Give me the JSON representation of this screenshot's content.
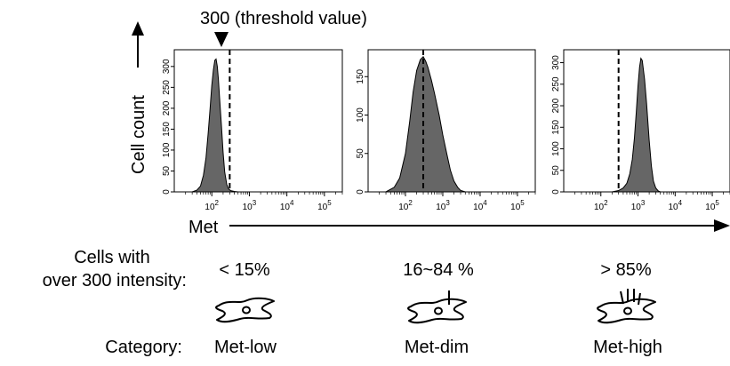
{
  "annotation": {
    "threshold_label": "300 (threshold value)"
  },
  "axes": {
    "ylabel": "Cell count",
    "xlabel": "Met"
  },
  "row_labels": {
    "percent_heading_line1": "Cells with",
    "percent_heading_line2": "over 300 intensity:",
    "category_heading": "Category:"
  },
  "chart_data": [
    {
      "type": "area",
      "xscale": "log",
      "xlim": [
        10,
        300000
      ],
      "threshold": 300,
      "x_ticks": [
        {
          "value": 100,
          "label": "10",
          "exp": "2"
        },
        {
          "value": 1000,
          "label": "10",
          "exp": "3"
        },
        {
          "value": 10000,
          "label": "10",
          "exp": "4"
        },
        {
          "value": 100000,
          "label": "10",
          "exp": "5"
        }
      ],
      "y_ticks": [
        0,
        50,
        100,
        150,
        200,
        250,
        300
      ],
      "ylim": [
        0,
        340
      ],
      "x": [
        30,
        40,
        50,
        60,
        70,
        80,
        90,
        100,
        110,
        120,
        130,
        140,
        150,
        160,
        180,
        200,
        220,
        250,
        280,
        320,
        400,
        500
      ],
      "y": [
        0,
        4,
        14,
        40,
        82,
        140,
        200,
        255,
        292,
        315,
        318,
        300,
        270,
        230,
        160,
        95,
        48,
        18,
        7,
        3,
        1,
        0
      ],
      "percent_label": "< 15%",
      "category": "Met-low"
    },
    {
      "type": "area",
      "xscale": "log",
      "xlim": [
        10,
        300000
      ],
      "threshold": 300,
      "x_ticks": [
        {
          "value": 100,
          "label": "10",
          "exp": "2"
        },
        {
          "value": 1000,
          "label": "10",
          "exp": "3"
        },
        {
          "value": 10000,
          "label": "10",
          "exp": "4"
        },
        {
          "value": 100000,
          "label": "10",
          "exp": "5"
        }
      ],
      "y_ticks": [
        0,
        50,
        100,
        150
      ],
      "ylim": [
        0,
        185
      ],
      "x": [
        30,
        50,
        70,
        100,
        130,
        160,
        200,
        250,
        300,
        350,
        400,
        500,
        600,
        800,
        1000,
        1300,
        1600,
        2000,
        2500,
        3000,
        4000
      ],
      "y": [
        0,
        6,
        18,
        50,
        92,
        130,
        158,
        172,
        176,
        170,
        162,
        145,
        128,
        100,
        74,
        48,
        28,
        14,
        6,
        2,
        0
      ],
      "percent_label": "16~84 %",
      "category": "Met-dim"
    },
    {
      "type": "area",
      "xscale": "log",
      "xlim": [
        10,
        300000
      ],
      "threshold": 300,
      "x_ticks": [
        {
          "value": 100,
          "label": "10",
          "exp": "2"
        },
        {
          "value": 1000,
          "label": "10",
          "exp": "3"
        },
        {
          "value": 10000,
          "label": "10",
          "exp": "4"
        },
        {
          "value": 100000,
          "label": "10",
          "exp": "5"
        }
      ],
      "y_ticks": [
        0,
        50,
        100,
        150,
        200,
        250,
        300
      ],
      "ylim": [
        0,
        330
      ],
      "x": [
        200,
        300,
        400,
        500,
        600,
        700,
        800,
        900,
        1000,
        1100,
        1200,
        1300,
        1500,
        1700,
        2000,
        2300,
        2600,
        3000,
        3500,
        4000
      ],
      "y": [
        0,
        3,
        9,
        20,
        42,
        75,
        125,
        185,
        245,
        290,
        310,
        305,
        262,
        205,
        120,
        60,
        25,
        9,
        2,
        0
      ],
      "percent_label": "> 85%",
      "category": "Met-high"
    }
  ]
}
